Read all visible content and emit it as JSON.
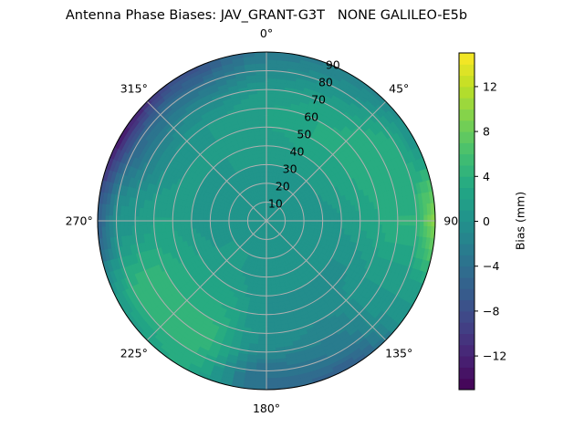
{
  "chart_data": {
    "type": "heatmap",
    "subtype": "polar-contourf",
    "title": "Antenna Phase Biases: JAV_GRANT-G3T   NONE GALILEO-E5b",
    "azimuth_ticks": [
      "0°",
      "45°",
      "90°",
      "135°",
      "180°",
      "225°",
      "270°",
      "315°"
    ],
    "azimuth_tick_values": [
      0,
      45,
      90,
      135,
      180,
      225,
      270,
      315
    ],
    "zenith_ticks": [
      "10",
      "20",
      "30",
      "40",
      "50",
      "60",
      "70",
      "80",
      "90"
    ],
    "zenith_tick_values": [
      10,
      20,
      30,
      40,
      50,
      60,
      70,
      80,
      90
    ],
    "zenith_range": [
      0,
      90
    ],
    "azimuth_direction": "clockwise",
    "azimuth_zero": "top",
    "grid": true,
    "colorbar": {
      "label": "Bias (mm)",
      "range": [
        -15,
        15
      ],
      "ticks": [
        "−12",
        "−8",
        "−4",
        "0",
        "4",
        "8",
        "12"
      ],
      "tick_values": [
        -12,
        -8,
        -4,
        0,
        4,
        8,
        12
      ],
      "colormap": "viridis",
      "levels": 30
    },
    "grid_azimuths": [
      0,
      30,
      60,
      90,
      120,
      150,
      180,
      210,
      240,
      270,
      300,
      330
    ],
    "grid_zeniths": [
      0,
      10,
      20,
      30,
      40,
      50,
      60,
      70,
      80,
      90
    ],
    "values": [
      [
        0,
        0,
        0,
        0,
        0,
        0,
        0,
        0,
        0,
        0,
        0,
        0
      ],
      [
        0,
        0,
        0,
        0,
        0,
        0,
        0,
        0,
        0,
        0,
        0,
        0
      ],
      [
        0,
        0,
        0,
        0,
        0,
        0,
        0,
        1,
        1,
        0,
        0,
        0
      ],
      [
        1,
        1,
        1,
        0,
        0,
        0,
        0,
        1,
        1,
        0,
        0,
        1
      ],
      [
        1,
        2,
        2,
        1,
        0,
        0,
        0,
        2,
        2,
        1,
        1,
        1
      ],
      [
        2,
        3,
        3,
        2,
        0,
        -1,
        0,
        3,
        3,
        2,
        1,
        1
      ],
      [
        2,
        3,
        4,
        3,
        1,
        -1,
        0,
        4,
        4,
        2,
        0,
        1
      ],
      [
        1,
        2,
        4,
        4,
        1,
        -2,
        -1,
        5,
        5,
        1,
        -2,
        -1
      ],
      [
        -1,
        0,
        3,
        4,
        1,
        -3,
        -4,
        4,
        4,
        0,
        -5,
        -4
      ],
      [
        -3,
        -2,
        0,
        10,
        1,
        -6,
        -4,
        3,
        1,
        -6,
        -13,
        -8
      ]
    ]
  }
}
